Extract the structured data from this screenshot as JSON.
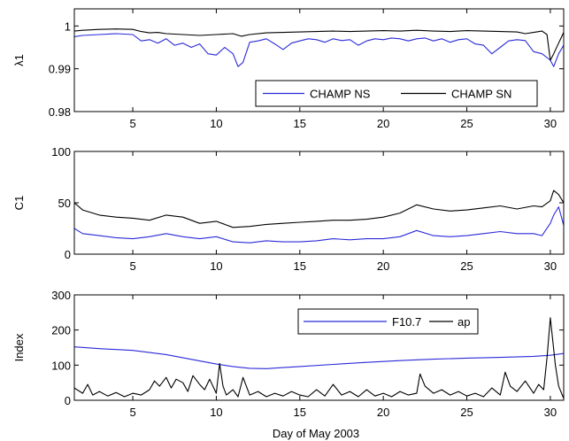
{
  "figure": {
    "xlabel": "Day of May 2003"
  },
  "chart_data": [
    {
      "type": "line",
      "xlabel": "",
      "ylabel": "λ1",
      "xlim": [
        1.5,
        30.8
      ],
      "ylim": [
        0.98,
        1.004
      ],
      "xticks": [
        5,
        10,
        15,
        20,
        25,
        30
      ],
      "yticks": [
        0.98,
        0.99,
        1
      ],
      "ytick_labels": [
        "0.98",
        "0.99",
        "1"
      ],
      "grid": false,
      "legend": {
        "placement": "bottom-right",
        "layout": "horizontal"
      },
      "series": [
        {
          "name": "CHAMP NS",
          "color": "#2a2ad8",
          "x": [
            1.5,
            2,
            3,
            4,
            5,
            5.5,
            6,
            6.5,
            7,
            7.5,
            8,
            8.5,
            9,
            9.5,
            10,
            10.5,
            11,
            11.3,
            11.6,
            12,
            12.5,
            13,
            13.5,
            14,
            14.5,
            15,
            15.5,
            16,
            16.5,
            17,
            17.5,
            18,
            18.5,
            19,
            19.5,
            20,
            20.5,
            21,
            21.5,
            22,
            22.5,
            23,
            23.5,
            24,
            24.5,
            25,
            25.5,
            26,
            26.5,
            27,
            27.5,
            28,
            28.5,
            29,
            29.5,
            30,
            30.2,
            30.5,
            30.8
          ],
          "y": [
            0.9975,
            0.9978,
            0.998,
            0.9982,
            0.998,
            0.9965,
            0.9968,
            0.996,
            0.997,
            0.9955,
            0.996,
            0.995,
            0.9958,
            0.9935,
            0.9932,
            0.995,
            0.9935,
            0.9905,
            0.9915,
            0.9962,
            0.9965,
            0.997,
            0.9958,
            0.9945,
            0.996,
            0.9965,
            0.997,
            0.9968,
            0.9962,
            0.997,
            0.9966,
            0.9968,
            0.9955,
            0.9965,
            0.997,
            0.9968,
            0.9972,
            0.997,
            0.9965,
            0.997,
            0.9972,
            0.9965,
            0.997,
            0.9962,
            0.9968,
            0.997,
            0.9958,
            0.9955,
            0.9935,
            0.995,
            0.9965,
            0.9968,
            0.9966,
            0.994,
            0.9935,
            0.992,
            0.9905,
            0.9935,
            0.9955
          ]
        },
        {
          "name": "CHAMP SN",
          "color": "#000000",
          "x": [
            1.5,
            2,
            3,
            4,
            5,
            5.5,
            6,
            6.5,
            7,
            8,
            9,
            10,
            11,
            11.5,
            12,
            13,
            14,
            15,
            16,
            17,
            18,
            19,
            20,
            21,
            22,
            23,
            24,
            25,
            26,
            27,
            28,
            28.5,
            29,
            29.5,
            29.8,
            30,
            30.2,
            30.5,
            30.8
          ],
          "y": [
            0.9988,
            0.999,
            0.9992,
            0.9993,
            0.9992,
            0.9987,
            0.9984,
            0.9985,
            0.9982,
            0.998,
            0.9978,
            0.998,
            0.9982,
            0.9976,
            0.998,
            0.9984,
            0.9985,
            0.9986,
            0.9987,
            0.9988,
            0.9987,
            0.9988,
            0.9989,
            0.9988,
            0.999,
            0.9988,
            0.9987,
            0.9989,
            0.9988,
            0.9987,
            0.9986,
            0.9982,
            0.9985,
            0.9988,
            0.998,
            0.992,
            0.9935,
            0.996,
            0.9985
          ]
        }
      ]
    },
    {
      "type": "line",
      "xlabel": "",
      "ylabel": "C1",
      "xlim": [
        1.5,
        30.8
      ],
      "ylim": [
        0,
        100
      ],
      "xticks": [
        5,
        10,
        15,
        20,
        25,
        30
      ],
      "yticks": [
        0,
        50,
        100
      ],
      "ytick_labels": [
        "0",
        "50",
        "100"
      ],
      "grid": false,
      "series": [
        {
          "color": "#2a2ad8",
          "x": [
            1.5,
            2,
            3,
            4,
            5,
            6,
            7,
            8,
            9,
            10,
            11,
            12,
            13,
            14,
            15,
            16,
            17,
            18,
            19,
            20,
            21,
            22,
            23,
            24,
            25,
            26,
            27,
            28,
            29,
            29.5,
            30,
            30.2,
            30.5,
            30.8
          ],
          "y": [
            25,
            20,
            18,
            16,
            15,
            17,
            20,
            17,
            15,
            17,
            12,
            11,
            13,
            12,
            12,
            13,
            15,
            14,
            15,
            15,
            17,
            23,
            18,
            17,
            18,
            20,
            22,
            20,
            20,
            18,
            30,
            38,
            46,
            28
          ]
        },
        {
          "color": "#000000",
          "x": [
            1.5,
            2,
            3,
            4,
            5,
            6,
            7,
            8,
            9,
            10,
            11,
            12,
            13,
            14,
            15,
            16,
            17,
            18,
            19,
            20,
            21,
            22,
            23,
            24,
            25,
            26,
            27,
            28,
            29,
            29.5,
            30,
            30.2,
            30.5,
            30.8
          ],
          "y": [
            50,
            43,
            38,
            36,
            35,
            33,
            38,
            36,
            30,
            32,
            26,
            27,
            29,
            30,
            31,
            32,
            33,
            33,
            34,
            36,
            40,
            48,
            44,
            42,
            43,
            45,
            47,
            44,
            47,
            46,
            52,
            62,
            58,
            50
          ]
        }
      ]
    },
    {
      "type": "line",
      "xlabel": "Day of May 2003",
      "ylabel": "Index",
      "xlim": [
        1.5,
        30.8
      ],
      "ylim": [
        0,
        300
      ],
      "xticks": [
        5,
        10,
        15,
        20,
        25,
        30
      ],
      "yticks": [
        0,
        100,
        200,
        300
      ],
      "ytick_labels": [
        "0",
        "100",
        "200",
        "300"
      ],
      "grid": false,
      "legend": {
        "placement": "top-center",
        "layout": "horizontal"
      },
      "series": [
        {
          "name": "F10.7",
          "color": "#2a2ad8",
          "x": [
            1.5,
            3,
            5,
            7,
            9,
            10,
            11,
            12,
            13,
            14,
            15,
            17,
            19,
            21,
            23,
            25,
            27,
            29,
            30,
            30.8
          ],
          "y": [
            152,
            147,
            142,
            130,
            112,
            103,
            96,
            91,
            90,
            93,
            96,
            102,
            108,
            113,
            117,
            120,
            122,
            125,
            128,
            133
          ]
        },
        {
          "name": "ap",
          "color": "#000000",
          "x": [
            1.5,
            2,
            2.3,
            2.6,
            3,
            3.5,
            4,
            4.5,
            5,
            5.5,
            6,
            6.3,
            6.6,
            7,
            7.3,
            7.6,
            8,
            8.3,
            8.6,
            9,
            9.3,
            9.6,
            10,
            10.2,
            10.4,
            10.6,
            11,
            11.3,
            11.6,
            12,
            12.5,
            13,
            13.5,
            14,
            14.5,
            15,
            15.5,
            16,
            16.5,
            17,
            17.5,
            18,
            18.5,
            19,
            19.5,
            20,
            20.5,
            21,
            21.5,
            22,
            22.2,
            22.5,
            23,
            23.5,
            24,
            24.5,
            25,
            25.5,
            26,
            26.5,
            27,
            27.3,
            27.6,
            28,
            28.5,
            29,
            29.3,
            29.6,
            29.8,
            30,
            30.3,
            30.5,
            30.8
          ],
          "y": [
            35,
            20,
            45,
            15,
            25,
            12,
            22,
            10,
            20,
            15,
            30,
            55,
            40,
            65,
            35,
            60,
            50,
            25,
            70,
            45,
            30,
            60,
            20,
            105,
            40,
            15,
            30,
            10,
            65,
            15,
            25,
            10,
            20,
            12,
            25,
            15,
            10,
            30,
            12,
            45,
            15,
            25,
            10,
            30,
            12,
            20,
            10,
            25,
            15,
            20,
            75,
            40,
            20,
            30,
            15,
            25,
            12,
            20,
            10,
            35,
            15,
            80,
            40,
            25,
            55,
            20,
            45,
            30,
            120,
            235,
            100,
            40,
            5
          ]
        }
      ]
    }
  ]
}
